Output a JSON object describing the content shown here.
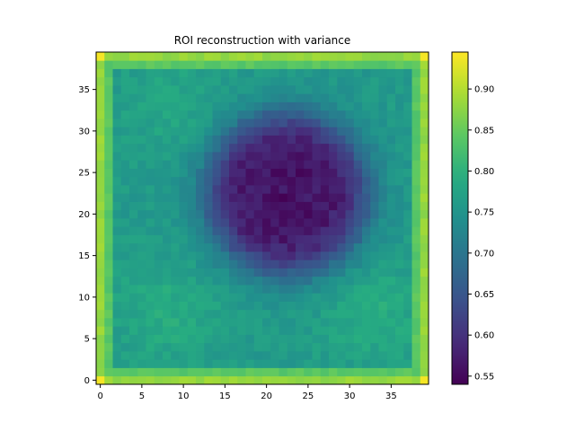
{
  "chart_data": {
    "type": "heatmap",
    "title": "ROI reconstruction with variance",
    "xlabel": "",
    "ylabel": "",
    "grid": false,
    "rows": 40,
    "cols": 40,
    "xlim": [
      -0.5,
      39.5
    ],
    "ylim": [
      -0.5,
      39.5
    ],
    "x_ticks": [
      0,
      5,
      10,
      15,
      20,
      25,
      30,
      35
    ],
    "y_ticks": [
      0,
      5,
      10,
      15,
      20,
      25,
      30,
      35
    ],
    "colormap": "viridis",
    "colorbar": {
      "min": 0.54,
      "max": 0.945,
      "ticks": [
        0.55,
        0.6,
        0.65,
        0.7,
        0.75,
        0.8,
        0.85,
        0.9
      ],
      "tick_labels": [
        "0.55",
        "0.60",
        "0.65",
        "0.70",
        "0.75",
        "0.80",
        "0.85",
        "0.90"
      ]
    },
    "field": {
      "background": 0.76,
      "border_values": [
        0.88,
        0.84
      ],
      "corner_value": 0.94,
      "low_region": {
        "center_x": 22.5,
        "center_y": 22.5,
        "radius": 9.5,
        "value": 0.56
      },
      "lighter_regions": [
        {
          "x": 8,
          "y": 8,
          "value": 0.79
        },
        {
          "x": 33,
          "y": 8,
          "value": 0.79
        },
        {
          "x": 9,
          "y": 33,
          "value": 0.78
        }
      ]
    }
  }
}
